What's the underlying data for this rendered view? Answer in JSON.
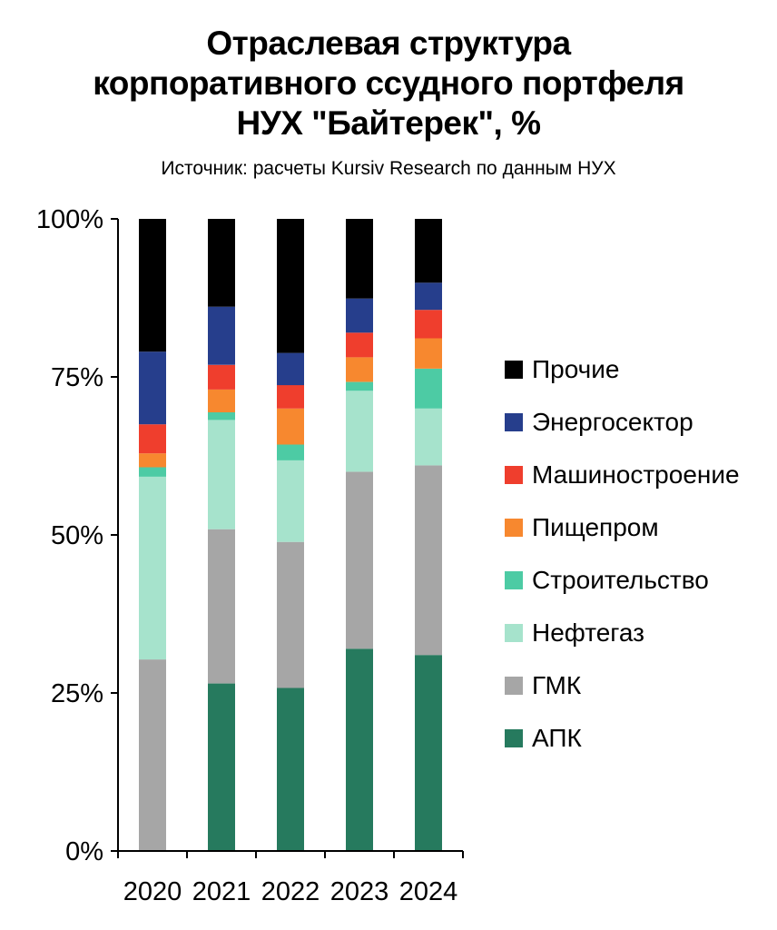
{
  "title_lines": [
    "Отраслевая структура",
    "корпоративного ссудного портфеля",
    "НУХ \"Байтерек\", %"
  ],
  "subtitle": "Источник: расчеты Kursiv Research по данным НУХ",
  "chart_data": {
    "type": "bar",
    "stacked": true,
    "title": "Отраслевая структура корпоративного ссудного портфеля НУХ \"Байтерек\", %",
    "subtitle": "Источник: расчеты Kursiv Research по данным НУХ",
    "categories": [
      "2020",
      "2021",
      "2022",
      "2023",
      "2024"
    ],
    "ylim": [
      0,
      100
    ],
    "yticks": [
      0,
      25,
      50,
      75,
      100
    ],
    "ytick_labels": [
      "0%",
      "25%",
      "50%",
      "75%",
      "100%"
    ],
    "grid": false,
    "legend_position": "right",
    "series": [
      {
        "name": "АПК",
        "color": "#267A5E",
        "values": [
          0,
          26.5,
          25.8,
          32.0,
          31.0
        ]
      },
      {
        "name": "ГМК",
        "color": "#A6A6A6",
        "values": [
          30.3,
          24.4,
          23.1,
          28.0,
          30.0
        ]
      },
      {
        "name": "Нефтегаз",
        "color": "#A6E3CC",
        "values": [
          28.9,
          17.3,
          12.9,
          12.8,
          9.0
        ]
      },
      {
        "name": "Строительство",
        "color": "#4DCBA4",
        "values": [
          1.5,
          1.2,
          2.5,
          1.4,
          6.3
        ]
      },
      {
        "name": "Пищепром",
        "color": "#F7882F",
        "values": [
          2.2,
          3.6,
          5.7,
          3.9,
          4.8
        ]
      },
      {
        "name": "Машиностроение",
        "color": "#EF3E2D",
        "values": [
          4.6,
          3.9,
          3.7,
          3.9,
          4.5
        ]
      },
      {
        "name": "Энергосектор",
        "color": "#263E8C",
        "values": [
          11.5,
          9.2,
          5.1,
          5.4,
          4.3
        ]
      },
      {
        "name": "Прочие",
        "color": "#000000",
        "values": [
          21.0,
          13.9,
          21.2,
          12.6,
          10.1
        ]
      }
    ]
  }
}
